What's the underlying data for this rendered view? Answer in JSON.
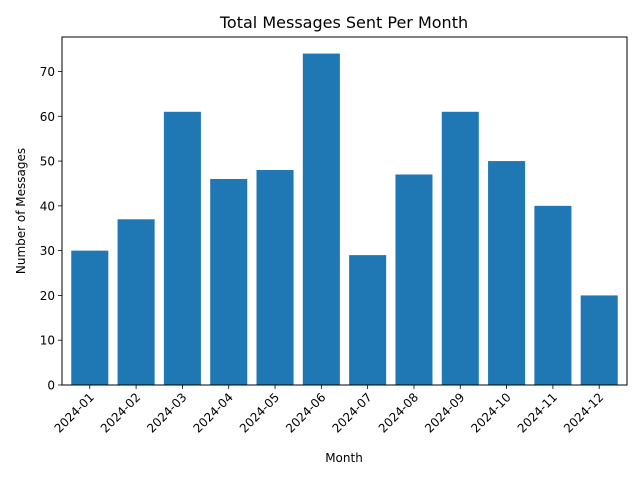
{
  "chart_data": {
    "type": "bar",
    "title": "Total Messages Sent Per Month",
    "xlabel": "Month",
    "ylabel": "Number of Messages",
    "categories": [
      "2024-01",
      "2024-02",
      "2024-03",
      "2024-04",
      "2024-05",
      "2024-06",
      "2024-07",
      "2024-08",
      "2024-09",
      "2024-10",
      "2024-11",
      "2024-12"
    ],
    "values": [
      30,
      37,
      61,
      46,
      48,
      74,
      29,
      47,
      61,
      50,
      40,
      20
    ],
    "ylim": [
      0,
      77.7
    ],
    "yticks": [
      0,
      10,
      20,
      30,
      40,
      50,
      60,
      70
    ],
    "bar_color": "#1f77b4",
    "grid": false,
    "xtick_rotation": 45
  }
}
